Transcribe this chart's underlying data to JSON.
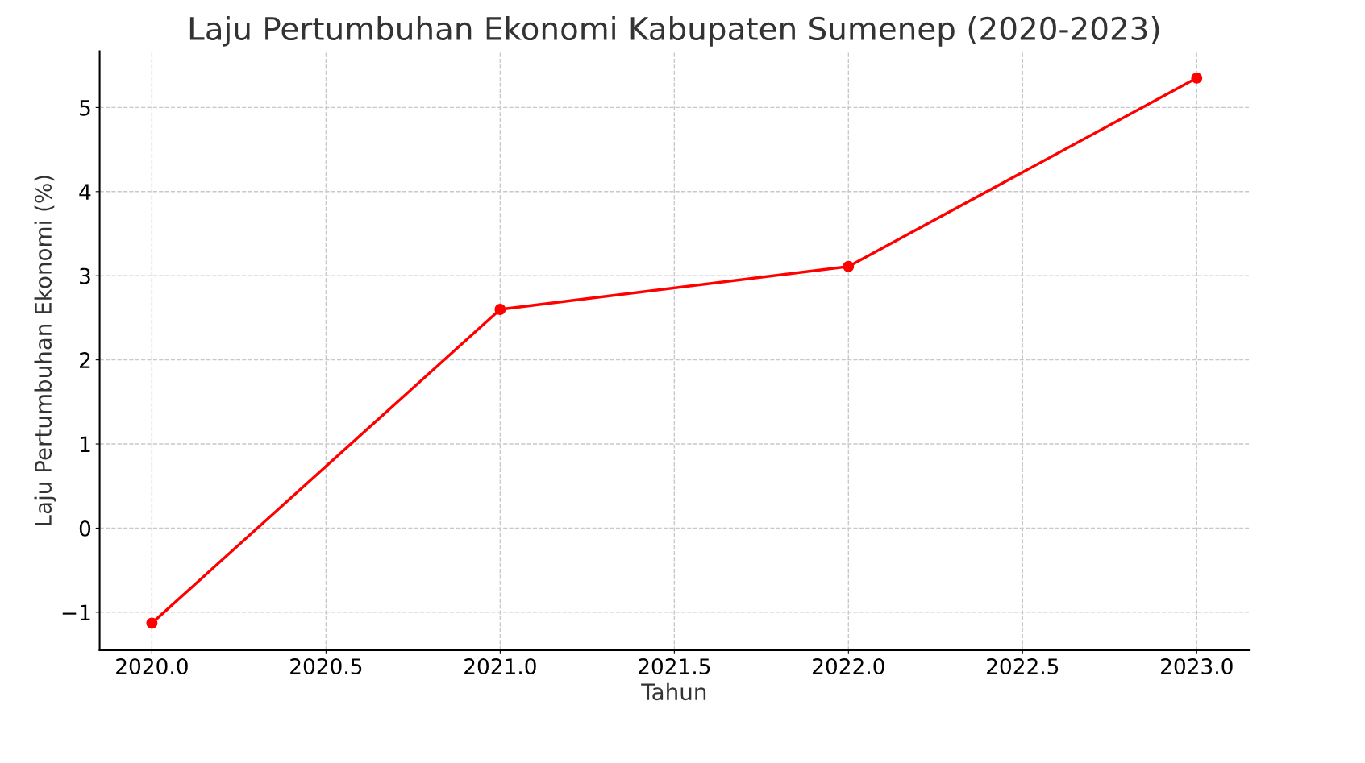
{
  "chart_data": {
    "type": "line",
    "title": "Laju Pertumbuhan Ekonomi Kabupaten Sumenep (2020-2023)",
    "xlabel": "Tahun",
    "ylabel": "Laju Pertumbuhan Ekonomi (%)",
    "x": [
      2020,
      2021,
      2022,
      2023
    ],
    "series": [
      {
        "color": "#ff0000",
        "values": [
          -1.13,
          2.6,
          3.11,
          5.35
        ]
      }
    ],
    "marker": "circle",
    "line_style": "solid",
    "grid": true,
    "legend": false,
    "xlim": [
      2019.85,
      2023.15
    ],
    "xticks": [
      {
        "value": 2020,
        "label": "2020.0"
      },
      {
        "value": 2020.5,
        "label": "2020.5"
      },
      {
        "value": 2021,
        "label": "2021.0"
      },
      {
        "value": 2021.5,
        "label": "2021.5"
      },
      {
        "value": 2022,
        "label": "2022.0"
      },
      {
        "value": 2022.5,
        "label": "2022.5"
      },
      {
        "value": 2023,
        "label": "2023.0"
      }
    ],
    "ylim": [
      -1.45,
      5.67
    ],
    "yticks": [
      {
        "value": -1,
        "label": "−1"
      },
      0,
      1,
      2,
      3,
      4,
      5
    ]
  }
}
